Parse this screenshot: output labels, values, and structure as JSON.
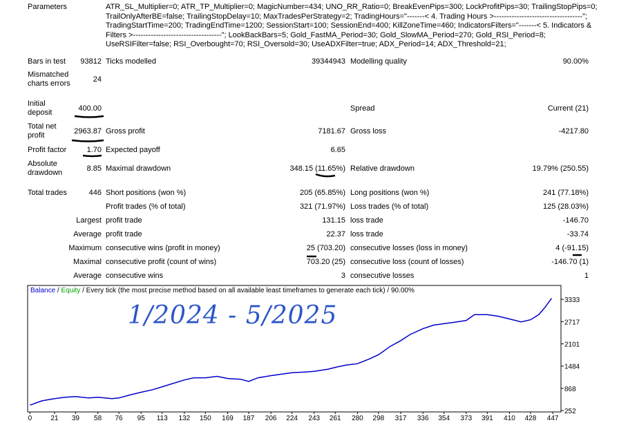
{
  "report": {
    "parameters_label": "Parameters",
    "parameters_lines": [
      "ATR_SL_Multiplier=0; ATR_TP_Multiplier=0; MagicNumber=434; UNO_RR_Ratio=0; BreakEvenPips=300; LockProfitPips=30; TrailingStopPips=0;",
      "TrailOnlyAfterBE=false; TrailingStopDelay=10; MaxTradesPerStrategy=2; TradingHours=\"-------< 4. Trading Hours >-----------------------------------\";",
      "TradingStartTime=200; TradingEndTime=1200; SessionStart=100; SessionEnd=400; KillZoneTime=460; IndicatorsFilters=\"-------< 5. Indicators &",
      "Filters >-----------------------------------\"; LookBackBars=5; Gold_FastMA_Period=30; Gold_SlowMA_Period=270; Gold_RSI_Period=8;",
      "UseRSIFilter=false; RSI_Overbought=70; RSI_Oversold=30; UseADXFilter=true; ADX_Period=14; ADX_Threshold=21;"
    ],
    "rows": [
      [
        "Bars in test",
        "93812",
        "Ticks modelled",
        "39344943",
        "Modelling quality",
        "90.00%"
      ],
      [
        "Mismatched charts errors",
        "24",
        null,
        null,
        null,
        null
      ],
      [
        "Initial deposit",
        "400.00",
        null,
        null,
        "Spread",
        "Current (21)"
      ],
      [
        "Total net profit",
        "2963.87",
        "Gross profit",
        "7181.67",
        "Gross loss",
        "-4217.80"
      ],
      [
        "Profit factor",
        "1.70",
        "Expected payoff",
        "6.65",
        null,
        null
      ],
      [
        "Absolute drawdown",
        "8.85",
        "Maximal drawdown",
        "348.15 (11.65%)",
        "Relative drawdown",
        "19.79% (250.55)"
      ],
      [
        "Total trades",
        "446",
        "Short positions (won %)",
        "205 (65.85%)",
        "Long positions (won %)",
        "241 (77.18%)"
      ],
      [
        null,
        null,
        "Profit trades (% of total)",
        "321 (71.97%)",
        "Loss trades (% of total)",
        "125 (28.03%)"
      ],
      [
        null,
        "Largest",
        "profit trade",
        "131.15",
        "loss trade",
        "-146.70"
      ],
      [
        null,
        "Average",
        "profit trade",
        "22.37",
        "loss trade",
        "-33.74"
      ],
      [
        null,
        "Maximum",
        "consecutive wins (profit in money)",
        "25 (703.20)",
        "consecutive losses (loss in money)",
        "4 (-91.15)"
      ],
      [
        null,
        "Maximal",
        "consecutive profit (count of wins)",
        "703.20 (25)",
        "consecutive loss (count of losses)",
        "-146.70 (1)"
      ],
      [
        null,
        "Average",
        "consecutive wins",
        "3",
        "consecutive losses",
        "1"
      ]
    ]
  },
  "chart_data": {
    "type": "line",
    "separator": "/",
    "subtitle": "Every tick (the most precise method based on all available least timeframes to generate each tick) / 90.00%",
    "equity_label": {
      "text": "Equity",
      "color": "#00a000"
    },
    "annotation": "1/2024 - 5/2025",
    "x": [
      0,
      10,
      21,
      30,
      39,
      50,
      58,
      70,
      76,
      85,
      95,
      105,
      113,
      125,
      132,
      140,
      150,
      160,
      169,
      180,
      187,
      195,
      206,
      215,
      224,
      235,
      243,
      255,
      261,
      270,
      280,
      290,
      298,
      308,
      317,
      325,
      336,
      345,
      354,
      363,
      373,
      380,
      391,
      400,
      410,
      420,
      428,
      435,
      440,
      446
    ],
    "series": [
      {
        "name": "Balance",
        "color": "#0000cc",
        "values": [
          400,
          520,
          580,
          620,
          640,
          600,
          620,
          580,
          600,
          680,
          760,
          830,
          910,
          1030,
          1100,
          1160,
          1160,
          1200,
          1140,
          1120,
          1060,
          1160,
          1220,
          1260,
          1300,
          1320,
          1340,
          1400,
          1450,
          1510,
          1550,
          1680,
          1800,
          2030,
          2190,
          2360,
          2520,
          2620,
          2660,
          2700,
          2750,
          2910,
          2910,
          2870,
          2790,
          2710,
          2770,
          2910,
          3100,
          3364
        ]
      }
    ],
    "xlim": [
      -2,
      454
    ],
    "ylim": [
      213,
      3720
    ],
    "xticks": [
      0,
      21,
      39,
      58,
      76,
      95,
      113,
      132,
      150,
      169,
      187,
      206,
      224,
      243,
      261,
      280,
      298,
      317,
      336,
      354,
      373,
      391,
      410,
      428,
      447
    ],
    "yticks": [
      252,
      868,
      1484,
      2101,
      2717,
      3333
    ]
  }
}
